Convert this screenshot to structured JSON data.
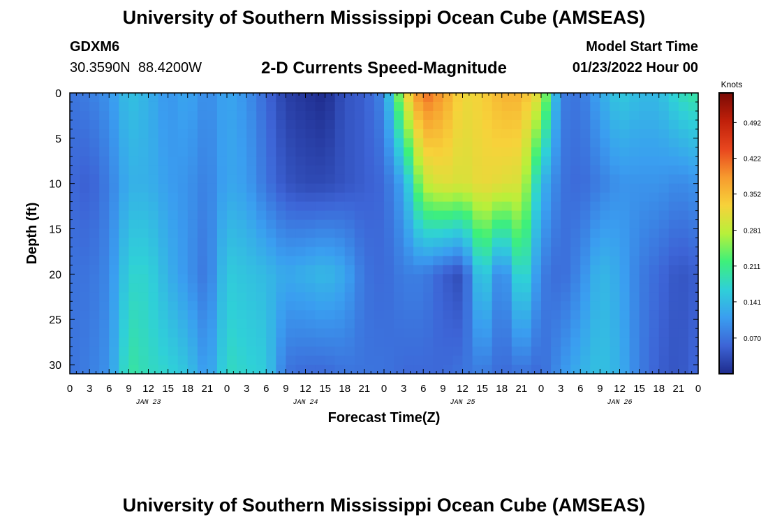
{
  "header": {
    "title": "University of Southern Mississippi Ocean Cube (AMSEAS)",
    "station_id": "GDXM6",
    "coords": "30.3590N  88.4200W",
    "plot_title": "2-D Currents Speed-Magnitude",
    "model_start_label": "Model Start Time",
    "model_start_value": "01/23/2022 Hour 00"
  },
  "footer": {
    "title": "University of Southern Mississippi Ocean Cube (AMSEAS)"
  },
  "chart_data": {
    "type": "heatmap",
    "title": "2-D Currents Speed-Magnitude",
    "xlabel": "Forecast Time(Z)",
    "ylabel": "Depth (ft)",
    "xlim": [
      0,
      96
    ],
    "ylim": [
      0,
      31
    ],
    "x_tick_values": [
      0,
      3,
      6,
      9,
      12,
      15,
      18,
      21,
      24,
      27,
      30,
      33,
      36,
      39,
      42,
      45,
      48,
      51,
      54,
      57,
      60,
      63,
      66,
      69,
      72,
      75,
      78,
      81,
      84,
      87,
      90,
      93,
      96
    ],
    "x_tick_labels": [
      "0",
      "3",
      "6",
      "9",
      "12",
      "15",
      "18",
      "21",
      "0",
      "3",
      "6",
      "9",
      "12",
      "15",
      "18",
      "21",
      "0",
      "3",
      "6",
      "9",
      "12",
      "15",
      "18",
      "21",
      "0",
      "3",
      "6",
      "9",
      "12",
      "15",
      "18",
      "21",
      "0"
    ],
    "y_ticks": [
      0,
      5,
      10,
      15,
      20,
      25,
      30
    ],
    "y_tick_labels": [
      "0",
      "5",
      "10",
      "15",
      "20",
      "25",
      "30"
    ],
    "day_labels": [
      {
        "label": "JAN 23",
        "x": 12
      },
      {
        "label": "JAN 24",
        "x": 36
      },
      {
        "label": "JAN 25",
        "x": 60
      },
      {
        "label": "JAN 26",
        "x": 84
      }
    ],
    "colorbar": {
      "unit_label": "Knots",
      "ticks": [
        0.07,
        0.141,
        0.211,
        0.281,
        0.352,
        0.422,
        0.492
      ],
      "tick_labels": [
        "0.070",
        "0.141",
        "0.211",
        "0.281",
        "0.352",
        "0.422",
        "0.492"
      ],
      "min": 0.0,
      "max": 0.55
    },
    "colors": {
      "scale": [
        "#1e2b8c",
        "#3d64d6",
        "#3a9ef0",
        "#2fd0d8",
        "#3ef07a",
        "#b8f03a",
        "#f7d23a",
        "#f79a2e",
        "#e8461e",
        "#c0200a",
        "#7a0a05"
      ]
    },
    "grid_step_x": 1.5,
    "grid_step_y": 1,
    "speed_samples": {
      "depths": [
        0,
        10,
        20,
        31
      ],
      "times": [
        0,
        3,
        6,
        9,
        12,
        15,
        18,
        21,
        24,
        27,
        30,
        33,
        36,
        39,
        42,
        45,
        48,
        51,
        54,
        57,
        60,
        63,
        66,
        69,
        72,
        75,
        78,
        81,
        84,
        87,
        90,
        93,
        96
      ],
      "values": [
        [
          0.07,
          0.08,
          0.1,
          0.15,
          0.13,
          0.1,
          0.12,
          0.09,
          0.12,
          0.1,
          0.06,
          0.02,
          0.01,
          0.0,
          0.04,
          0.05,
          0.09,
          0.3,
          0.42,
          0.38,
          0.32,
          0.33,
          0.36,
          0.36,
          0.3,
          0.08,
          0.07,
          0.12,
          0.16,
          0.14,
          0.14,
          0.18,
          0.2
        ],
        [
          0.06,
          0.05,
          0.08,
          0.13,
          0.13,
          0.11,
          0.1,
          0.08,
          0.12,
          0.11,
          0.07,
          0.04,
          0.03,
          0.03,
          0.04,
          0.05,
          0.06,
          0.12,
          0.28,
          0.31,
          0.3,
          0.32,
          0.31,
          0.3,
          0.14,
          0.07,
          0.06,
          0.08,
          0.1,
          0.1,
          0.1,
          0.09,
          0.1
        ],
        [
          0.07,
          0.07,
          0.09,
          0.17,
          0.17,
          0.13,
          0.1,
          0.07,
          0.16,
          0.15,
          0.14,
          0.12,
          0.13,
          0.14,
          0.12,
          0.07,
          0.06,
          0.08,
          0.08,
          0.05,
          0.03,
          0.18,
          0.07,
          0.2,
          0.08,
          0.06,
          0.09,
          0.14,
          0.12,
          0.08,
          0.06,
          0.04,
          0.05
        ],
        [
          0.07,
          0.08,
          0.1,
          0.2,
          0.18,
          0.17,
          0.15,
          0.1,
          0.18,
          0.17,
          0.16,
          0.07,
          0.06,
          0.06,
          0.07,
          0.07,
          0.07,
          0.06,
          0.06,
          0.06,
          0.07,
          0.08,
          0.06,
          0.07,
          0.06,
          0.1,
          0.13,
          0.15,
          0.13,
          0.08,
          0.05,
          0.04,
          0.06
        ]
      ]
    }
  }
}
